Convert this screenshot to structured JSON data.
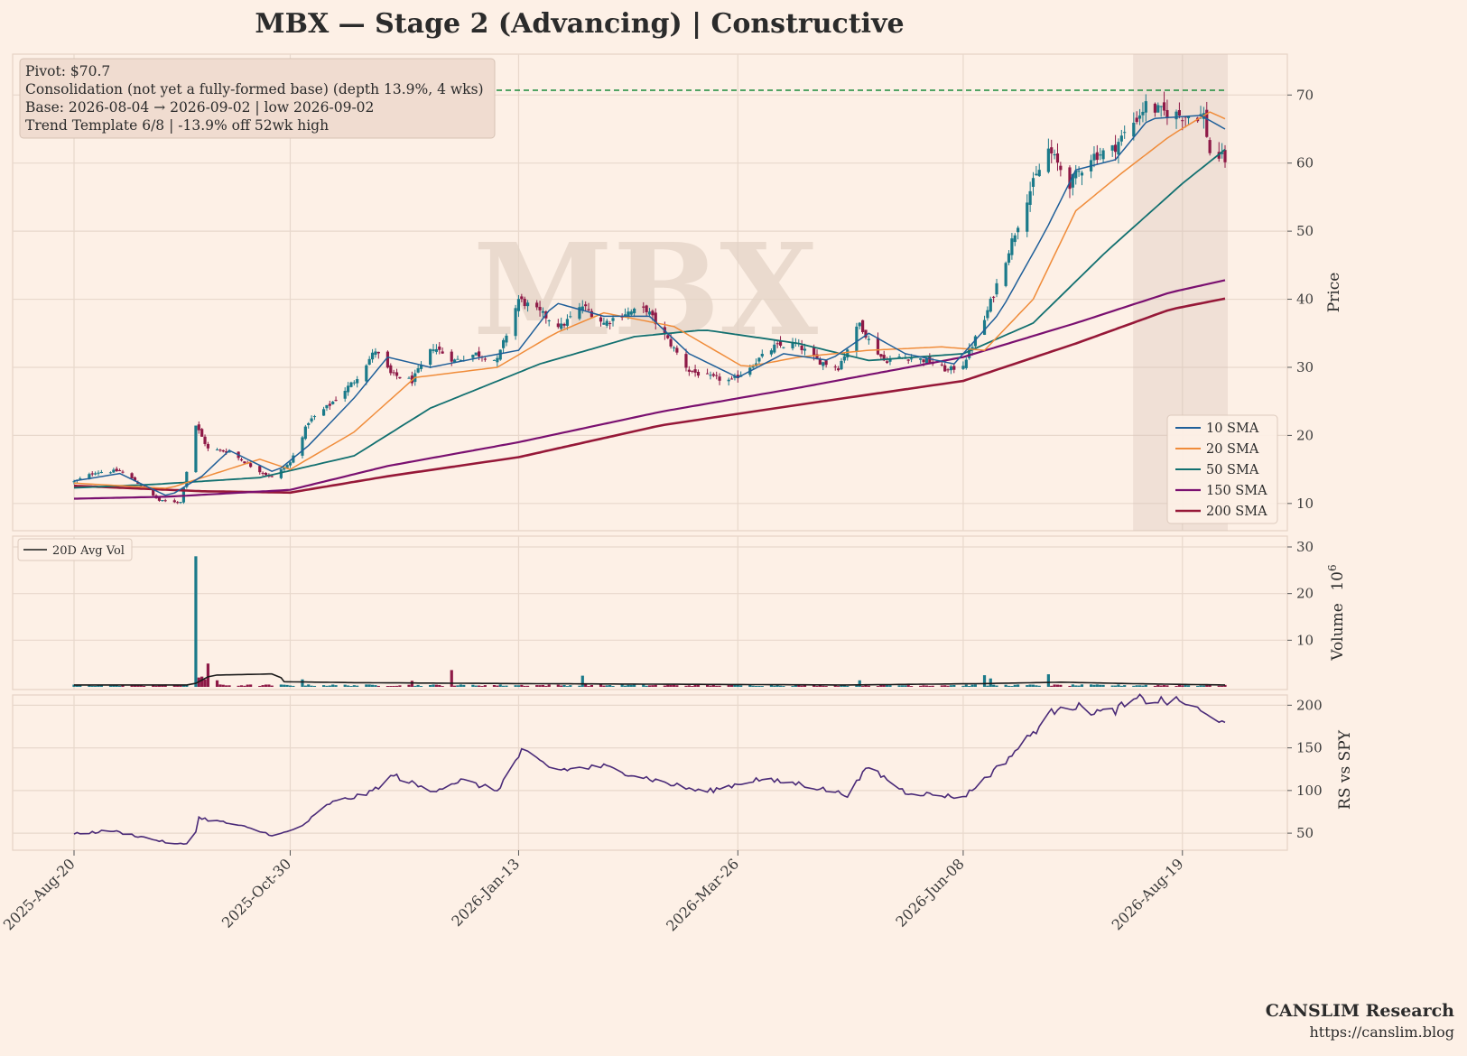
{
  "title": "MBX  —  Stage 2 (Advancing)  |  Constructive",
  "watermark": "MBX",
  "annotation": {
    "lines": [
      "Pivot: $70.7",
      "Consolidation (not yet a fully-formed base)  (depth 13.9%, 4 wks)",
      "Base: 2026-08-04 → 2026-09-02  |  low 2026-09-02",
      "Trend Template 6/8  |  -13.9% off 52wk high"
    ]
  },
  "footer": {
    "brand": "CANSLIM Research",
    "url": "https://canslim.blog"
  },
  "colors": {
    "background": "#fdf0e6",
    "grid": "#e8d8cc",
    "up_candle": "#1b7a8a",
    "down_candle": "#8e1a47",
    "sma10": "#1f5f99",
    "sma20": "#f08c3a",
    "sma50": "#127070",
    "sma150": "#7a1070",
    "sma200": "#961838",
    "pivot": "#1a8a3a",
    "rs": "#4a2a78",
    "avg_vol": "#1a1a1a",
    "base_shade": "#d8c4b8"
  },
  "chart_data": {
    "type": "candlestick",
    "x_ticks": [
      "2025-Aug-20",
      "2025-Oct-30",
      "2026-Jan-13",
      "2026-Mar-26",
      "2026-Jun-08",
      "2026-Aug-19"
    ],
    "date_start": "2025-08-20",
    "date_end": "2026-09-02",
    "pivot": 70.7,
    "base_start": "2026-08-04",
    "base_end": "2026-09-02",
    "price_panel": {
      "ylabel": "Price",
      "ylim": [
        6,
        76
      ],
      "yticks": [
        10,
        20,
        30,
        40,
        50,
        60,
        70
      ],
      "legend": [
        "10 SMA",
        "20 SMA",
        "50 SMA",
        "150 SMA",
        "200 SMA"
      ],
      "close_anchors": [
        [
          "2025-08-20",
          13.2
        ],
        [
          "2025-08-27",
          14.6
        ],
        [
          "2025-09-04",
          14.8
        ],
        [
          "2025-09-10",
          13.0
        ],
        [
          "2025-09-17",
          10.4
        ],
        [
          "2025-09-24",
          10.2
        ],
        [
          "2025-09-29",
          21.5
        ],
        [
          "2025-10-03",
          18.0
        ],
        [
          "2025-10-10",
          17.6
        ],
        [
          "2025-10-17",
          15.5
        ],
        [
          "2025-10-24",
          13.8
        ],
        [
          "2025-10-30",
          16.0
        ],
        [
          "2025-11-05",
          22.0
        ],
        [
          "2025-11-12",
          24.5
        ],
        [
          "2025-11-20",
          28.0
        ],
        [
          "2025-11-27",
          32.5
        ],
        [
          "2025-12-02",
          29.0
        ],
        [
          "2025-12-09",
          28.0
        ],
        [
          "2025-12-16",
          33.0
        ],
        [
          "2025-12-23",
          31.0
        ],
        [
          "2025-12-30",
          32.0
        ],
        [
          "2026-01-06",
          31.0
        ],
        [
          "2026-01-13",
          40.0
        ],
        [
          "2026-01-20",
          38.0
        ],
        [
          "2026-01-27",
          36.0
        ],
        [
          "2026-02-03",
          39.0
        ],
        [
          "2026-02-10",
          36.5
        ],
        [
          "2026-02-17",
          38.0
        ],
        [
          "2026-02-24",
          38.5
        ],
        [
          "2026-03-03",
          34.0
        ],
        [
          "2026-03-10",
          29.5
        ],
        [
          "2026-03-17",
          28.5
        ],
        [
          "2026-03-24",
          28.0
        ],
        [
          "2026-03-31",
          30.5
        ],
        [
          "2026-04-07",
          33.0
        ],
        [
          "2026-04-14",
          33.5
        ],
        [
          "2026-04-21",
          31.0
        ],
        [
          "2026-04-28",
          30.0
        ],
        [
          "2026-05-05",
          36.5
        ],
        [
          "2026-05-08",
          34.0
        ],
        [
          "2026-05-13",
          31.0
        ],
        [
          "2026-05-20",
          31.5
        ],
        [
          "2026-05-27",
          31.0
        ],
        [
          "2026-06-03",
          29.5
        ],
        [
          "2026-06-08",
          30.5
        ],
        [
          "2026-06-15",
          37.0
        ],
        [
          "2026-06-22",
          46.0
        ],
        [
          "2026-06-29",
          55.0
        ],
        [
          "2026-07-06",
          62.0
        ],
        [
          "2026-07-13",
          57.0
        ],
        [
          "2026-07-20",
          61.0
        ],
        [
          "2026-07-27",
          62.0
        ],
        [
          "2026-08-03",
          66.0
        ],
        [
          "2026-08-07",
          68.5
        ],
        [
          "2026-08-12",
          67.5
        ],
        [
          "2026-08-19",
          67.0
        ],
        [
          "2026-08-26",
          67.0
        ],
        [
          "2026-08-28",
          61.5
        ],
        [
          "2026-09-02",
          60.5
        ]
      ],
      "sma10": [
        [
          "2025-08-20",
          13.3
        ],
        [
          "2025-09-04",
          14.4
        ],
        [
          "2025-09-20",
          11.0
        ],
        [
          "2025-10-01",
          14.0
        ],
        [
          "2025-10-10",
          17.8
        ],
        [
          "2025-10-25",
          14.5
        ],
        [
          "2025-11-05",
          18.5
        ],
        [
          "2025-11-20",
          25.5
        ],
        [
          "2025-12-01",
          31.5
        ],
        [
          "2025-12-15",
          30.0
        ],
        [
          "2026-01-01",
          31.5
        ],
        [
          "2026-01-13",
          32.5
        ],
        [
          "2026-01-25",
          39.5
        ],
        [
          "2026-02-10",
          37.5
        ],
        [
          "2026-02-25",
          37.5
        ],
        [
          "2026-03-10",
          32.0
        ],
        [
          "2026-03-26",
          28.5
        ],
        [
          "2026-04-10",
          32.0
        ],
        [
          "2026-04-25",
          31.0
        ],
        [
          "2026-05-08",
          35.0
        ],
        [
          "2026-05-20",
          32.0
        ],
        [
          "2026-06-05",
          30.5
        ],
        [
          "2026-06-20",
          38.0
        ],
        [
          "2026-07-05",
          50.0
        ],
        [
          "2026-07-15",
          59.0
        ],
        [
          "2026-07-28",
          60.5
        ],
        [
          "2026-08-08",
          66.5
        ],
        [
          "2026-08-25",
          67.0
        ],
        [
          "2026-09-02",
          65.0
        ]
      ],
      "sma20": [
        [
          "2025-08-20",
          13.0
        ],
        [
          "2025-09-20",
          12.2
        ],
        [
          "2025-10-20",
          16.5
        ],
        [
          "2025-10-30",
          15.0
        ],
        [
          "2025-11-20",
          20.5
        ],
        [
          "2025-12-10",
          28.5
        ],
        [
          "2026-01-06",
          30.0
        ],
        [
          "2026-01-25",
          35.0
        ],
        [
          "2026-02-10",
          38.0
        ],
        [
          "2026-03-05",
          36.0
        ],
        [
          "2026-03-28",
          30.0
        ],
        [
          "2026-04-15",
          31.5
        ],
        [
          "2026-05-08",
          32.5
        ],
        [
          "2026-06-01",
          33.0
        ],
        [
          "2026-06-15",
          32.5
        ],
        [
          "2026-07-01",
          40.0
        ],
        [
          "2026-07-15",
          53.0
        ],
        [
          "2026-07-30",
          58.5
        ],
        [
          "2026-08-15",
          64.0
        ],
        [
          "2026-08-28",
          67.5
        ],
        [
          "2026-09-02",
          66.5
        ]
      ],
      "sma50": [
        [
          "2025-08-20",
          12.3
        ],
        [
          "2025-09-15",
          12.8
        ],
        [
          "2025-10-20",
          13.8
        ],
        [
          "2025-11-20",
          17.0
        ],
        [
          "2025-12-15",
          24.0
        ],
        [
          "2026-01-20",
          30.5
        ],
        [
          "2026-02-20",
          34.5
        ],
        [
          "2026-03-15",
          35.5
        ],
        [
          "2026-04-15",
          33.5
        ],
        [
          "2026-05-08",
          31.0
        ],
        [
          "2026-06-08",
          32.0
        ],
        [
          "2026-07-01",
          36.5
        ],
        [
          "2026-07-25",
          47.0
        ],
        [
          "2026-08-19",
          57.0
        ],
        [
          "2026-09-02",
          62.0
        ]
      ],
      "sma150": [
        [
          "2025-08-20",
          10.7
        ],
        [
          "2025-09-20",
          11.0
        ],
        [
          "2025-10-30",
          12.0
        ],
        [
          "2025-12-01",
          15.5
        ],
        [
          "2026-01-13",
          19.0
        ],
        [
          "2026-03-01",
          23.5
        ],
        [
          "2026-04-15",
          27.0
        ],
        [
          "2026-06-08",
          31.5
        ],
        [
          "2026-07-15",
          36.5
        ],
        [
          "2026-08-15",
          41.0
        ],
        [
          "2026-09-02",
          42.8
        ]
      ],
      "sma200": [
        [
          "2025-08-20",
          12.6
        ],
        [
          "2025-10-01",
          11.8
        ],
        [
          "2025-10-30",
          11.6
        ],
        [
          "2025-12-01",
          14.0
        ],
        [
          "2026-01-13",
          16.8
        ],
        [
          "2026-03-01",
          21.5
        ],
        [
          "2026-04-15",
          24.5
        ],
        [
          "2026-06-08",
          28.0
        ],
        [
          "2026-07-15",
          33.5
        ],
        [
          "2026-08-15",
          38.5
        ],
        [
          "2026-09-02",
          40.1
        ]
      ]
    },
    "volume_panel": {
      "ylabel": "Volume",
      "unit_exponent": "6",
      "ylim": [
        0,
        30
      ],
      "yticks": [
        10,
        20,
        30
      ],
      "legend": [
        "20D Avg Vol"
      ],
      "base_volume": 0.35,
      "spikes": [
        [
          "2025-09-29",
          28.0
        ],
        [
          "2025-09-30",
          2.0
        ],
        [
          "2025-10-01",
          2.2
        ],
        [
          "2025-10-02",
          1.6
        ],
        [
          "2025-10-03",
          5.0
        ],
        [
          "2025-10-06",
          1.4
        ],
        [
          "2025-11-03",
          1.6
        ],
        [
          "2025-12-09",
          1.3
        ],
        [
          "2025-12-22",
          3.6
        ],
        [
          "2026-02-03",
          2.4
        ],
        [
          "2026-05-05",
          1.4
        ],
        [
          "2026-06-15",
          2.5
        ],
        [
          "2026-06-17",
          1.8
        ],
        [
          "2026-07-06",
          2.7
        ]
      ],
      "avg_vol": [
        [
          "2025-08-20",
          0.4
        ],
        [
          "2025-09-28",
          0.4
        ],
        [
          "2025-10-04",
          2.5
        ],
        [
          "2025-10-26",
          2.8
        ],
        [
          "2025-10-28",
          1.1
        ],
        [
          "2025-11-20",
          0.9
        ],
        [
          "2026-01-13",
          0.7
        ],
        [
          "2026-05-01",
          0.4
        ],
        [
          "2026-06-15",
          0.7
        ],
        [
          "2026-07-10",
          1.0
        ],
        [
          "2026-08-01",
          0.7
        ],
        [
          "2026-09-02",
          0.4
        ]
      ]
    },
    "rs_panel": {
      "ylabel": "RS vs SPY",
      "ylim": [
        30,
        212
      ],
      "yticks": [
        50,
        100,
        150,
        200
      ],
      "anchors": [
        [
          "2025-08-20",
          49
        ],
        [
          "2025-09-01",
          53
        ],
        [
          "2025-09-12",
          45
        ],
        [
          "2025-09-22",
          37
        ],
        [
          "2025-09-28",
          38
        ],
        [
          "2025-09-30",
          68
        ],
        [
          "2025-10-12",
          60
        ],
        [
          "2025-10-25",
          47
        ],
        [
          "2025-11-02",
          56
        ],
        [
          "2025-11-12",
          85
        ],
        [
          "2025-11-25",
          97
        ],
        [
          "2025-12-03",
          118
        ],
        [
          "2025-12-15",
          99
        ],
        [
          "2025-12-25",
          112
        ],
        [
          "2026-01-06",
          100
        ],
        [
          "2026-01-14",
          146
        ],
        [
          "2026-01-25",
          124
        ],
        [
          "2026-02-10",
          128
        ],
        [
          "2026-03-01",
          110
        ],
        [
          "2026-03-15",
          98
        ],
        [
          "2026-04-01",
          113
        ],
        [
          "2026-04-15",
          108
        ],
        [
          "2026-05-01",
          95
        ],
        [
          "2026-05-08",
          128
        ],
        [
          "2026-05-20",
          98
        ],
        [
          "2026-06-08",
          92
        ],
        [
          "2026-06-22",
          135
        ],
        [
          "2026-07-01",
          168
        ],
        [
          "2026-07-10",
          202
        ],
        [
          "2026-07-25",
          190
        ],
        [
          "2026-08-05",
          207
        ],
        [
          "2026-08-20",
          203
        ],
        [
          "2026-08-28",
          185
        ],
        [
          "2026-09-02",
          184
        ]
      ]
    }
  }
}
